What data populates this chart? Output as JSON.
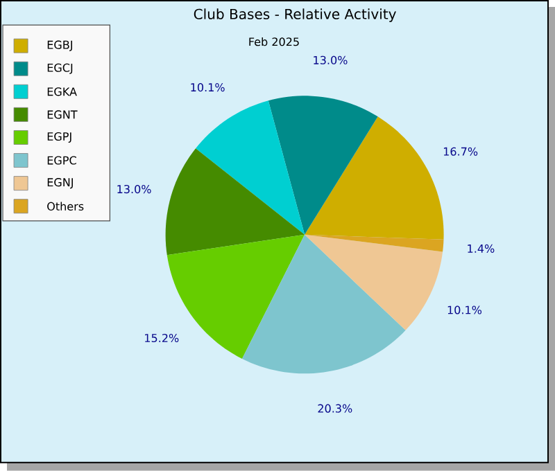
{
  "chart_data": {
    "type": "pie",
    "title": "Club Bases - Relative Activity",
    "subtitle": "Feb 2025",
    "categories": [
      "EGBJ",
      "EGCJ",
      "EGKA",
      "EGNT",
      "EGPJ",
      "EGPC",
      "EGNJ",
      "Others"
    ],
    "values": [
      16.7,
      13.0,
      10.1,
      13.0,
      15.2,
      20.3,
      10.1,
      1.4
    ],
    "value_labels": [
      "16.7%",
      "13.0%",
      "10.1%",
      "13.0%",
      "15.2%",
      "20.3%",
      "10.1%",
      "1.4%"
    ],
    "colors": [
      "#cfae00",
      "#008b8a",
      "#00cfd1",
      "#458b00",
      "#66cd00",
      "#7ec5ce",
      "#efc794",
      "#dba521"
    ],
    "legend": "top left"
  }
}
